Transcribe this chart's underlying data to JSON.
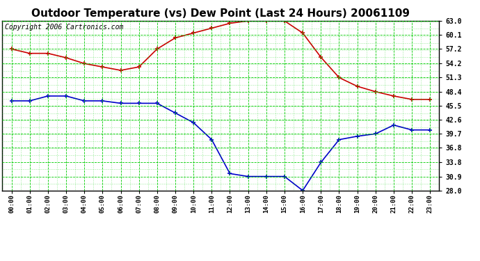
{
  "title": "Outdoor Temperature (vs) Dew Point (Last 24 Hours) 20061109",
  "copyright": "Copyright 2006 Cartronics.com",
  "hours": [
    "00:00",
    "01:00",
    "02:00",
    "03:00",
    "04:00",
    "05:00",
    "06:00",
    "07:00",
    "08:00",
    "09:00",
    "10:00",
    "11:00",
    "12:00",
    "13:00",
    "14:00",
    "15:00",
    "16:00",
    "17:00",
    "18:00",
    "19:00",
    "20:00",
    "21:00",
    "22:00",
    "23:00"
  ],
  "temp": [
    57.2,
    56.3,
    56.3,
    55.4,
    54.2,
    53.5,
    52.8,
    53.5,
    57.2,
    59.5,
    60.5,
    61.5,
    62.5,
    63.0,
    63.0,
    63.0,
    60.5,
    55.5,
    51.3,
    49.5,
    48.4,
    47.5,
    46.8,
    46.8
  ],
  "dewpoint": [
    46.5,
    46.5,
    47.5,
    47.5,
    46.5,
    46.5,
    46.0,
    46.0,
    46.0,
    44.0,
    42.0,
    38.5,
    31.5,
    30.9,
    30.9,
    30.9,
    28.0,
    33.8,
    38.5,
    39.2,
    39.7,
    41.5,
    40.5,
    40.5
  ],
  "yticks": [
    28.0,
    30.9,
    33.8,
    36.8,
    39.7,
    42.6,
    45.5,
    48.4,
    51.3,
    54.2,
    57.2,
    60.1,
    63.0
  ],
  "ymin": 28.0,
  "ymax": 63.0,
  "temp_color": "#cc0000",
  "dewpoint_color": "#0000cc",
  "grid_color": "#00cc00",
  "bg_color": "#ffffff",
  "title_fontsize": 11,
  "copyright_fontsize": 7
}
